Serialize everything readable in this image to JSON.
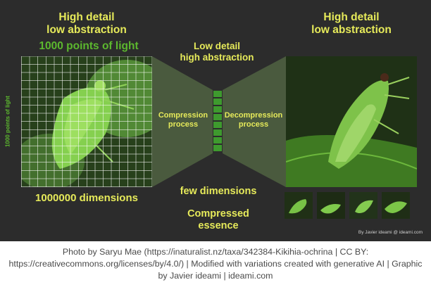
{
  "left_title": "High detail\nlow abstraction",
  "right_title": "High detail\nlow abstraction",
  "points_of_light": "1000 points of light",
  "vertical_points_label": "1000 points of light",
  "center_title": "Low detail\nhigh abstraction",
  "compression_label": "Compression\nprocess",
  "decompression_label": "Decompression\nprocess",
  "left_dimensions": "1000000 dimensions",
  "few_dimensions": "few dimensions",
  "compressed_essence": "Compressed\nessence",
  "credit": "By Javier ideami @ ideami.com",
  "caption_lines": [
    "Photo by Saryu Mae (https://inaturalist.nz/taxa/342384-Kikihia-ochrina | CC BY:",
    "https://creativecommons.org/licenses/by/4.0/) | Modified with variations created with generative AI | Graphic",
    "by Javier ideami | ideami.com"
  ],
  "colors": {
    "background": "#2c2c2c",
    "title_yellow": "#e6ea5a",
    "green_label": "#5cb82e",
    "funnel": "#4a5a3e",
    "bottleneck": "#3e9a2e"
  },
  "icons": [
    "cicada-photo-gridded",
    "cicada-photo-reconstructed",
    "cicada-variation-thumbnail"
  ]
}
